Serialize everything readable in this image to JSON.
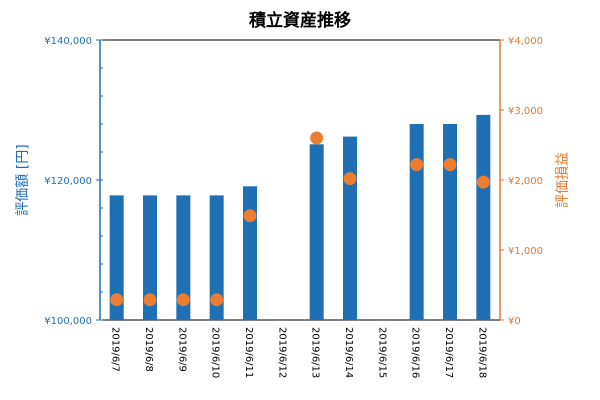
{
  "chart_data": {
    "type": "bar",
    "title": "積立資産推移",
    "categories": [
      "2019/6/7",
      "2019/6/8",
      "2019/6/9",
      "2019/6/10",
      "2019/6/11",
      "2019/6/12",
      "2019/6/13",
      "2019/6/14",
      "2019/6/15",
      "2019/6/16",
      "2019/6/17",
      "2019/6/18"
    ],
    "series": [
      {
        "name": "評価額",
        "type": "bar",
        "axis": "left",
        "values": [
          117800,
          117800,
          117800,
          117800,
          119100,
          null,
          125100,
          126200,
          null,
          128000,
          128000,
          129300
        ]
      },
      {
        "name": "評価損益",
        "type": "scatter",
        "axis": "right",
        "values": [
          290,
          290,
          290,
          290,
          1490,
          null,
          2600,
          2020,
          null,
          2220,
          2220,
          1970
        ]
      }
    ],
    "y_left": {
      "label": "評価額 [円]",
      "range": [
        100000,
        140000
      ],
      "ticks": [
        100000,
        120000,
        140000
      ],
      "tick_labels": [
        "¥100,000",
        "¥120,000",
        "¥140,000"
      ]
    },
    "y_right": {
      "label": "評価損益",
      "range": [
        0,
        4000
      ],
      "ticks": [
        0,
        1000,
        2000,
        3000,
        4000
      ],
      "tick_labels": [
        "¥0",
        "¥1,000",
        "¥2,000",
        "¥3,000",
        "¥4,000"
      ]
    },
    "grid": false,
    "legend": "none",
    "colors": {
      "bar": "#1f6fb4",
      "marker": "#ed7d31",
      "left_axis": "#1f6fb4",
      "right_axis": "#e07a2e"
    }
  }
}
